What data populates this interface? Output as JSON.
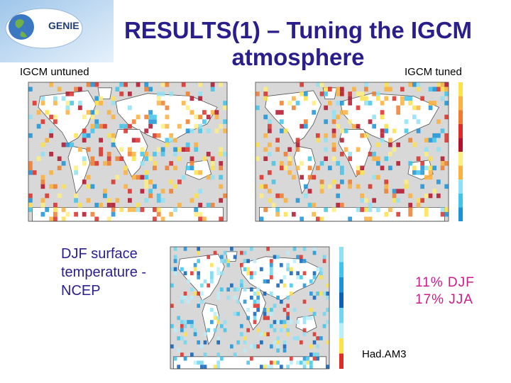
{
  "logo": {
    "text": "GENIE",
    "icon": "globe-logo-icon"
  },
  "title": {
    "line1": "RESULTS(1) – Tuning the IGCM",
    "line2": "atmosphere"
  },
  "panels": {
    "untuned": {
      "label": "IGCM untuned"
    },
    "tuned": {
      "label": "IGCM tuned"
    },
    "had": {
      "label": "Had.AM3"
    }
  },
  "description": {
    "line1": "DJF surface",
    "line2": "temperature -",
    "line3": "NCEP"
  },
  "stats": {
    "line1": "11% DJF",
    "line2": "17% JJA"
  },
  "colors": {
    "title": "#2a1e8c",
    "stats": "#cc1b86",
    "ocean": "#d8d8d8",
    "land": "#ffffff"
  }
}
